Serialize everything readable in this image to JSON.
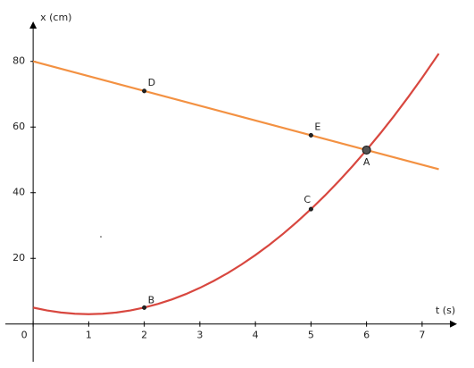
{
  "chart_data": {
    "type": "line",
    "x_label": "x (cm)",
    "t_label": "t (s)",
    "xlim": [
      -0.5,
      7.5
    ],
    "ylim": [
      -11.5,
      90
    ],
    "xticks": [
      0,
      1,
      2,
      3,
      4,
      5,
      6,
      7
    ],
    "yticks": [
      20,
      40,
      60,
      80
    ],
    "series": [
      {
        "color": "#f39142",
        "x": [
          0,
          7.3
        ],
        "values": [
          80,
          47.15
        ]
      },
      {
        "color": "#d8473f",
        "x": [
          0,
          0.25,
          0.5,
          0.75,
          1,
          1.25,
          1.5,
          1.75,
          2,
          2.25,
          2.5,
          2.75,
          3,
          3.25,
          3.5,
          3.75,
          4,
          4.25,
          4.5,
          4.75,
          5,
          5.25,
          5.5,
          5.75,
          6,
          6.25,
          6.5,
          6.75,
          7,
          7.3
        ],
        "values": [
          5,
          4.125,
          3.5,
          3.125,
          3,
          3.125,
          3.5,
          4.125,
          5,
          6.125,
          7.5,
          9.125,
          11,
          13.125,
          15.5,
          18.125,
          21,
          24.125,
          27.5,
          31.125,
          35,
          39.125,
          43.5,
          48.125,
          53,
          58.125,
          63.5,
          69.125,
          75,
          82.38
        ]
      }
    ],
    "points": [
      {
        "label": "D",
        "x": 2,
        "y": 71
      },
      {
        "label": "E",
        "x": 5,
        "y": 57.5
      },
      {
        "label": "A",
        "x": 6,
        "y": 53
      },
      {
        "label": "B",
        "x": 2,
        "y": 5
      },
      {
        "label": "C",
        "x": 5,
        "y": 35
      }
    ]
  }
}
